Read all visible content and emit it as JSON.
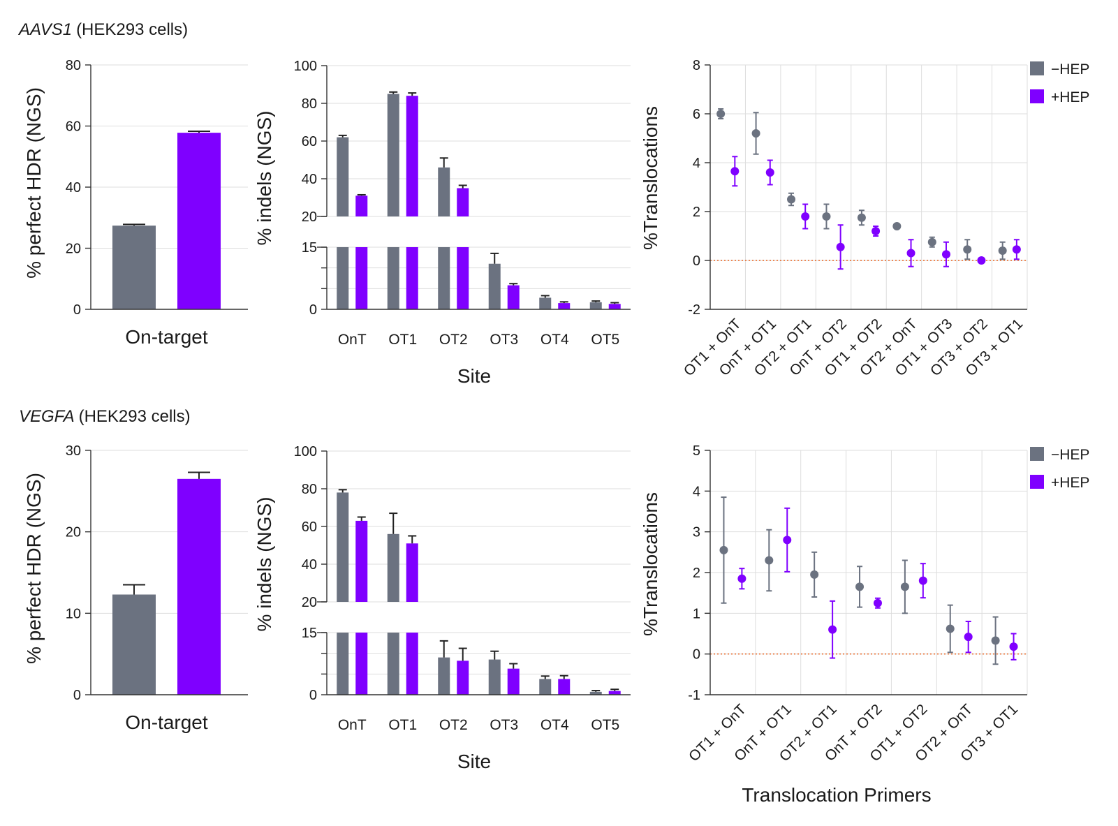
{
  "colors": {
    "minus_hep": "#6b7280",
    "plus_hep": "#7f00ff",
    "zero_line": "#e8601c"
  },
  "rows": [
    {
      "gene": "AAVS1",
      "cells": "(HEK293 cells)"
    },
    {
      "gene": "VEGFA",
      "cells": "(HEK293 cells)"
    }
  ],
  "legend": {
    "minus": "−HEP",
    "plus": "+HEP"
  },
  "chart_data": [
    {
      "type": "bar",
      "ylabel": "% perfect HDR (NGS)",
      "categories": [
        "On-target"
      ],
      "ylim": [
        0,
        80
      ],
      "yticks": [
        0,
        20,
        40,
        60,
        80
      ],
      "series": [
        {
          "name": "−HEP",
          "values": [
            27.4
          ],
          "err": [
            0.4
          ]
        },
        {
          "name": "+HEP",
          "values": [
            57.8
          ],
          "err": [
            0.5
          ]
        }
      ]
    },
    {
      "type": "bar",
      "ylabel": "% indels (NGS)",
      "xlabel": "Site",
      "categories": [
        "OnT",
        "OT1",
        "OT2",
        "OT3",
        "OT4",
        "OT5"
      ],
      "axis_break": {
        "lower_max": 15,
        "upper_min": 20
      },
      "yticks": [
        0,
        15,
        20,
        40,
        60,
        80,
        100
      ],
      "series": [
        {
          "name": "−HEP",
          "values": [
            62,
            85,
            46,
            11,
            2.8,
            1.7
          ],
          "err": [
            1,
            1,
            5,
            2.5,
            0.5,
            0.3
          ]
        },
        {
          "name": "+HEP",
          "values": [
            31,
            84,
            35,
            5.8,
            1.5,
            1.3
          ],
          "err": [
            0.5,
            1.5,
            1.5,
            0.4,
            0.3,
            0.3
          ]
        }
      ]
    },
    {
      "type": "scatter",
      "ylabel": "%Translocations",
      "categories": [
        "OT1 + OnT",
        "OnT + OT1",
        "OT2 + OT1",
        "OnT + OT2",
        "OT1 + OT2",
        "OT2 + OnT",
        "OT1 + OT3",
        "OT3 + OT2",
        "OT3 + OT1"
      ],
      "ylim": [
        -2,
        8
      ],
      "yticks": [
        -2,
        0,
        2,
        4,
        6,
        8
      ],
      "series": [
        {
          "name": "−HEP",
          "values": [
            6.0,
            5.2,
            2.5,
            1.8,
            1.75,
            1.4,
            0.75,
            0.45,
            0.4
          ],
          "err": [
            0.2,
            0.85,
            0.25,
            0.5,
            0.3,
            0.05,
            0.2,
            0.4,
            0.35
          ]
        },
        {
          "name": "+HEP",
          "values": [
            3.65,
            3.6,
            1.8,
            0.55,
            1.2,
            0.3,
            0.25,
            0.0,
            0.45
          ],
          "err": [
            0.6,
            0.5,
            0.5,
            0.9,
            0.2,
            0.55,
            0.5,
            0.05,
            0.4
          ]
        }
      ]
    },
    {
      "type": "bar",
      "ylabel": "% perfect HDR (NGS)",
      "categories": [
        "On-target"
      ],
      "ylim": [
        0,
        30
      ],
      "yticks": [
        0,
        10,
        20,
        30
      ],
      "series": [
        {
          "name": "−HEP",
          "values": [
            12.3
          ],
          "err": [
            1.2
          ]
        },
        {
          "name": "+HEP",
          "values": [
            26.5
          ],
          "err": [
            0.8
          ]
        }
      ]
    },
    {
      "type": "bar",
      "ylabel": "% indels (NGS)",
      "xlabel": "Site",
      "categories": [
        "OnT",
        "OT1",
        "OT2",
        "OT3",
        "OT4",
        "OT5"
      ],
      "axis_break": {
        "lower_max": 15,
        "upper_min": 20
      },
      "yticks": [
        0,
        15,
        20,
        40,
        60,
        80,
        100
      ],
      "series": [
        {
          "name": "−HEP",
          "values": [
            78,
            56,
            9,
            8.5,
            3.8,
            0.7
          ],
          "err": [
            1.5,
            11,
            4,
            2,
            0.7,
            0.3
          ]
        },
        {
          "name": "+HEP",
          "values": [
            63,
            51,
            8.2,
            6.3,
            3.8,
            0.9
          ],
          "err": [
            2,
            4,
            3,
            1.2,
            0.8,
            0.4
          ]
        }
      ]
    },
    {
      "type": "scatter",
      "ylabel": "%Translocations",
      "xlabel": "Translocation Primers",
      "categories": [
        "OT1 + OnT",
        "OnT + OT1",
        "OT2 + OT1",
        "OnT + OT2",
        "OT1 + OT2",
        "OT2 + OnT",
        "OT3 + OT1"
      ],
      "ylim": [
        -1,
        5
      ],
      "yticks": [
        -1,
        0,
        1,
        2,
        3,
        4,
        5
      ],
      "series": [
        {
          "name": "−HEP",
          "values": [
            2.55,
            2.3,
            1.95,
            1.65,
            1.65,
            0.62,
            0.33
          ],
          "err": [
            1.3,
            0.75,
            0.55,
            0.5,
            0.65,
            0.58,
            0.58
          ]
        },
        {
          "name": "+HEP",
          "values": [
            1.85,
            2.8,
            0.6,
            1.25,
            1.8,
            0.42,
            0.18
          ],
          "err": [
            0.25,
            0.78,
            0.7,
            0.12,
            0.42,
            0.38,
            0.32
          ]
        }
      ]
    }
  ]
}
